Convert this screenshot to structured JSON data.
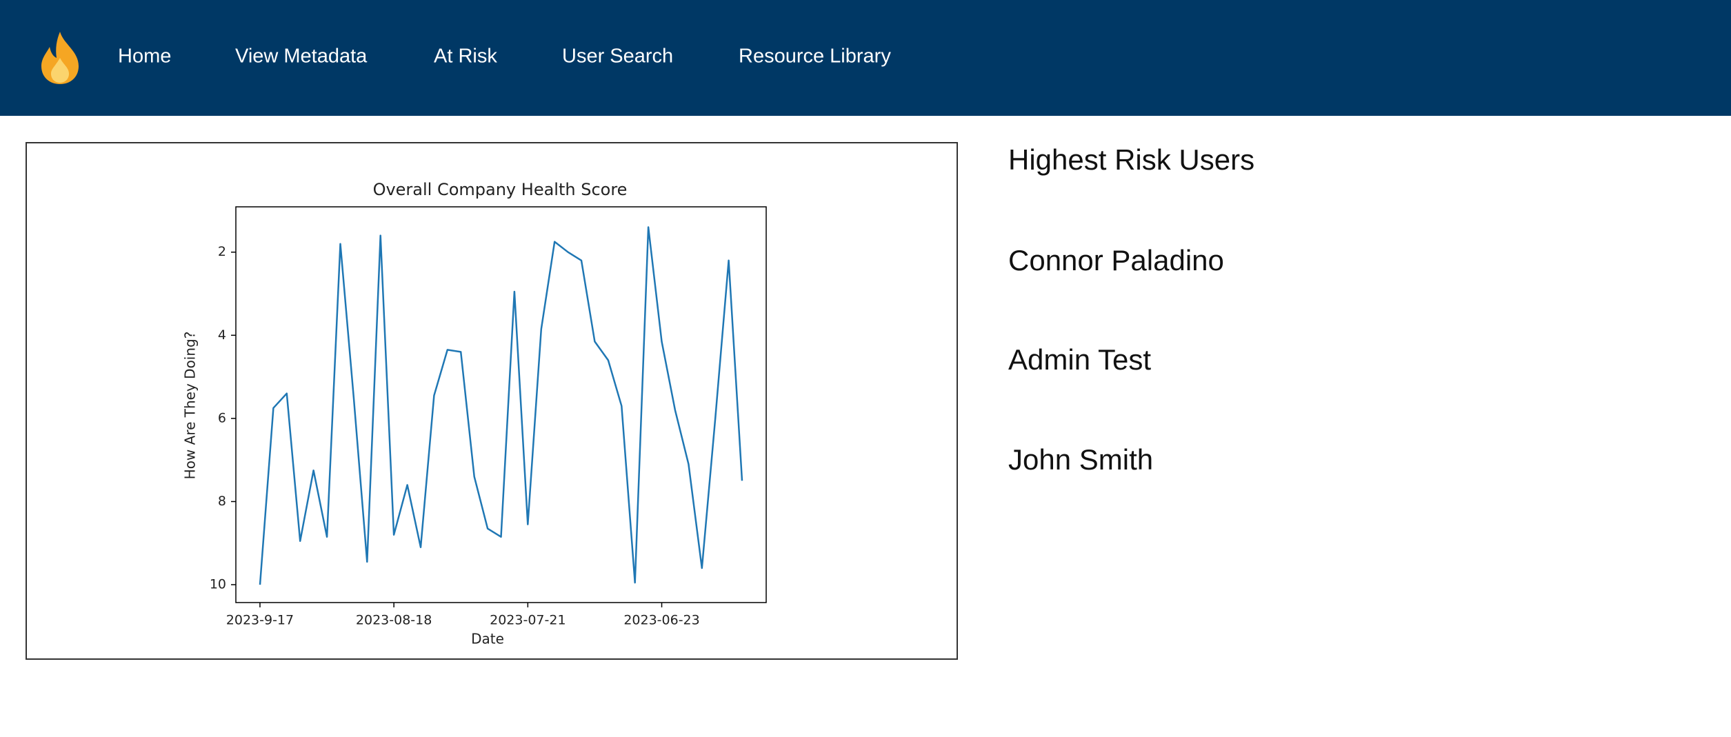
{
  "nav": {
    "items": [
      "Home",
      "View Metadata",
      "At Risk",
      "User Search",
      "Resource Library"
    ]
  },
  "chart_data": {
    "type": "line",
    "title": "Overall Company Health Score",
    "xlabel": "Date",
    "ylabel": "How Are They Doing?",
    "categories": [
      "2023-9-17",
      null,
      null,
      null,
      null,
      null,
      null,
      null,
      null,
      null,
      "2023-08-18",
      null,
      null,
      null,
      null,
      null,
      null,
      null,
      null,
      null,
      "2023-07-21",
      null,
      null,
      null,
      null,
      null,
      null,
      null,
      null,
      null,
      "2023-06-23",
      null,
      null,
      null,
      null,
      null,
      null
    ],
    "values": [
      10.0,
      5.75,
      5.4,
      8.95,
      7.25,
      8.85,
      1.8,
      5.5,
      9.45,
      1.6,
      8.8,
      7.6,
      9.1,
      5.45,
      4.35,
      4.4,
      7.4,
      8.65,
      8.85,
      2.95,
      8.55,
      3.85,
      1.75,
      2.0,
      2.2,
      4.15,
      4.6,
      5.7,
      9.95,
      1.4,
      4.15,
      5.8,
      7.1,
      9.6,
      6.0,
      2.2,
      7.5
    ],
    "color": "#1f77b4",
    "ylim": [
      10.43,
      0.91
    ],
    "yticks": [
      2,
      4,
      6,
      8,
      10
    ]
  },
  "sidebar": {
    "title": "Highest Risk Users",
    "users": [
      "Connor Paladino",
      "Admin Test",
      "John Smith"
    ]
  }
}
